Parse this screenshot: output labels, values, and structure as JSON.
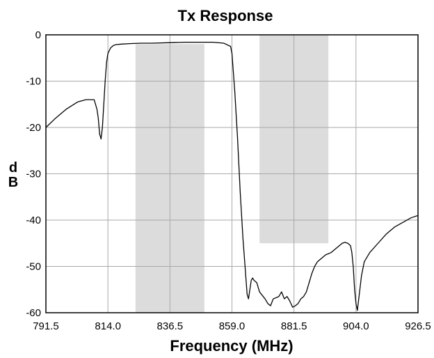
{
  "chart_data": {
    "type": "line",
    "title": "Tx Response",
    "xlabel": "Frequency (MHz)",
    "ylabel": [
      "d",
      "B"
    ],
    "xlim": [
      791.5,
      926.5
    ],
    "ylim": [
      -60,
      0
    ],
    "xticks": [
      "791.5",
      "814.0",
      "836.5",
      "859.0",
      "881.5",
      "904.0",
      "926.5"
    ],
    "xtick_values": [
      791.5,
      814.0,
      836.5,
      859.0,
      881.5,
      904.0,
      926.5
    ],
    "yticks": [
      "0",
      "-10",
      "-20",
      "-30",
      "-40",
      "-50",
      "-60"
    ],
    "ytick_values": [
      0,
      -10,
      -20,
      -30,
      -40,
      -50,
      -60
    ],
    "grid": true,
    "shaded_regions": [
      {
        "x": [
          824.0,
          849.0
        ],
        "y": [
          -60,
          -2
        ]
      },
      {
        "x": [
          869.0,
          894.0
        ],
        "y": [
          -45,
          0
        ]
      }
    ],
    "series": [
      {
        "color": "#000000",
        "x": [
          791.5,
          795,
          799,
          803,
          806,
          808,
          809,
          810,
          810.5,
          811,
          811.3,
          811.5,
          812,
          812.5,
          813,
          813.5,
          814,
          815,
          816,
          817,
          819,
          822,
          826,
          830,
          836,
          842,
          848,
          852,
          856,
          858.5,
          859,
          860,
          861,
          862,
          863,
          864,
          864.5,
          865,
          865.5,
          866,
          866.5,
          867,
          868,
          869,
          871,
          872,
          873,
          874,
          876,
          877,
          878,
          879,
          880,
          881,
          882,
          883,
          884,
          885,
          886,
          887,
          888,
          889,
          890,
          891,
          893,
          895,
          897,
          898,
          899,
          900,
          901,
          902,
          902.5,
          903,
          903.5,
          904,
          904.5,
          905,
          906,
          907,
          909,
          912,
          915,
          918,
          921,
          924,
          926.5
        ],
        "values": [
          -20,
          -18,
          -16,
          -14.5,
          -14,
          -14,
          -14,
          -16,
          -18,
          -21.5,
          -22,
          -22.5,
          -20,
          -15,
          -10,
          -6,
          -4,
          -2.8,
          -2.3,
          -2.1,
          -2,
          -1.9,
          -1.8,
          -1.8,
          -1.7,
          -1.6,
          -1.6,
          -1.6,
          -1.8,
          -2.5,
          -4,
          -12,
          -22,
          -34,
          -44,
          -52,
          -56,
          -57,
          -55,
          -53,
          -52.5,
          -53,
          -53.5,
          -55.5,
          -57,
          -58,
          -58.5,
          -57,
          -56.5,
          -55.5,
          -57,
          -56.5,
          -57.5,
          -58.8,
          -58.5,
          -58,
          -57,
          -56.5,
          -55.5,
          -53.5,
          -51.5,
          -50,
          -49,
          -48.5,
          -47.5,
          -47,
          -46,
          -45.5,
          -45,
          -44.8,
          -45,
          -45.5,
          -47,
          -50,
          -55,
          -58,
          -59.5,
          -57,
          -52,
          -49,
          -47,
          -45,
          -43,
          -41.5,
          -40.5,
          -39.5,
          -39
        ]
      }
    ]
  }
}
